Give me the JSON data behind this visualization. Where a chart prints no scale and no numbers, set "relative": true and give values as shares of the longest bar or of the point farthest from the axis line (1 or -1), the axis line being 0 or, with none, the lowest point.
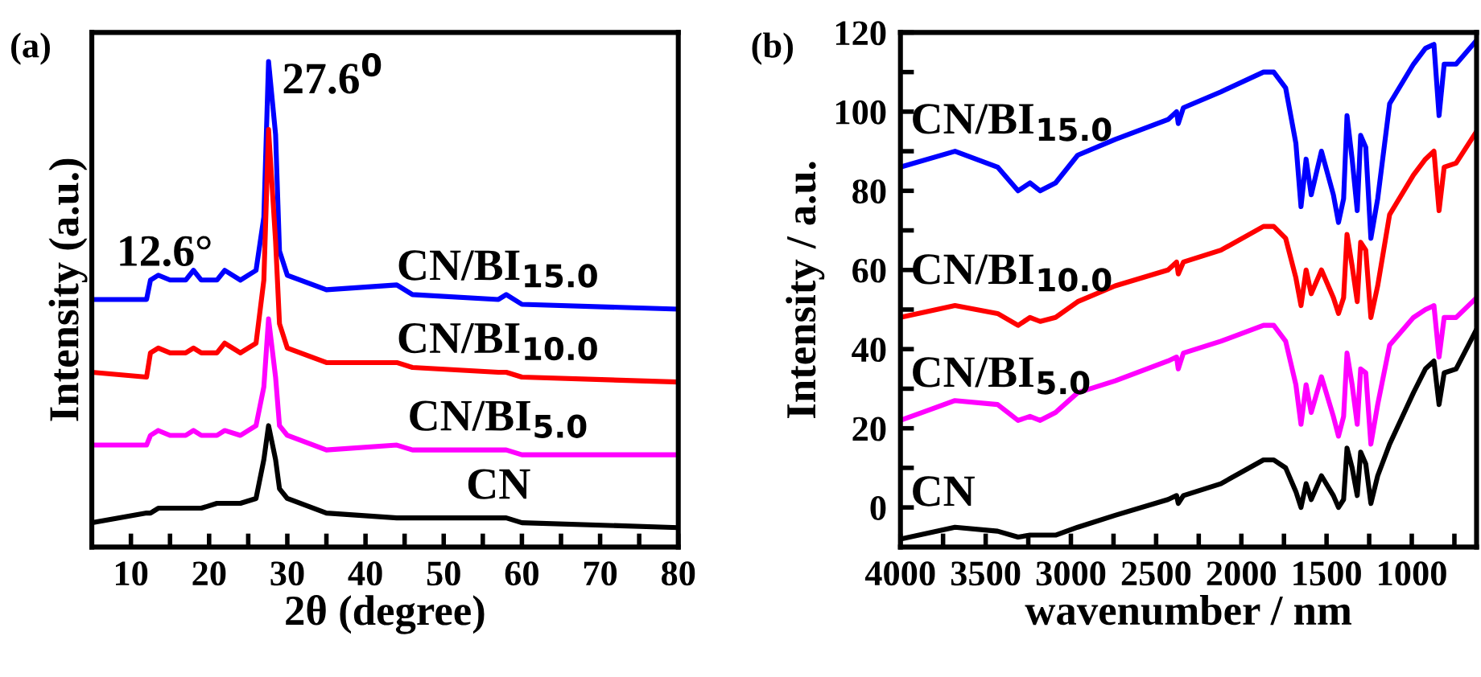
{
  "chart_data": [
    {
      "type": "line",
      "xlabel": "2θ (degree)",
      "ylabel": "Intensity (a.u.)",
      "relative": true,
      "xlim": [
        5,
        80
      ],
      "xticks": [
        10,
        {
          "value": 15,
          "label": null
        },
        20,
        {
          "value": 25,
          "label": null
        },
        30,
        {
          "value": 35,
          "label": null
        },
        40,
        {
          "value": 45,
          "label": null
        },
        50,
        {
          "value": 55,
          "label": null
        },
        60,
        {
          "value": 65,
          "label": null
        },
        70,
        {
          "value": 75,
          "label": null
        },
        80
      ],
      "x": [
        5,
        12,
        12.5,
        13.5,
        15,
        17,
        18,
        19,
        21,
        22,
        24,
        26,
        27,
        27.6,
        28.5,
        29,
        30,
        35,
        44,
        46,
        57,
        58,
        60,
        80
      ],
      "series": [
        {
          "name": "CN/BI$_{15.0}$",
          "color": "#0000ff",
          "values": [
            0.51,
            0.51,
            0.55,
            0.56,
            0.55,
            0.55,
            0.57,
            0.55,
            0.55,
            0.57,
            0.55,
            0.57,
            0.68,
            1,
            0.85,
            0.61,
            0.56,
            0.53,
            0.54,
            0.52,
            0.51,
            0.52,
            0.5,
            0.49
          ]
        },
        {
          "name": "CN/BI$_{10.0}$",
          "color": "#ff0000",
          "values": [
            0.36,
            0.35,
            0.4,
            0.41,
            0.4,
            0.4,
            0.41,
            0.4,
            0.4,
            0.42,
            0.4,
            0.42,
            0.55,
            0.86,
            0.63,
            0.46,
            0.41,
            0.38,
            0.38,
            0.37,
            0.36,
            0.36,
            0.35,
            0.34
          ]
        },
        {
          "name": "CN/BI$_{5.0}$",
          "color": "#ff00ff",
          "values": [
            0.21,
            0.21,
            0.23,
            0.24,
            0.23,
            0.23,
            0.24,
            0.23,
            0.23,
            0.24,
            0.23,
            0.25,
            0.33,
            0.47,
            0.35,
            0.25,
            0.23,
            0.2,
            0.21,
            0.2,
            0.2,
            0.2,
            0.19,
            0.19
          ]
        },
        {
          "name": "CN",
          "color": "#000000",
          "values": [
            0.05,
            0.07,
            0.07,
            0.08,
            0.08,
            0.08,
            0.08,
            0.08,
            0.09,
            0.09,
            0.09,
            0.1,
            0.18,
            0.25,
            0.18,
            0.12,
            0.1,
            0.07,
            0.06,
            0.06,
            0.06,
            0.06,
            0.05,
            0.04
          ]
        }
      ],
      "annotations": [
        "(a)",
        {
          "text": "12.6°",
          "x": 12.6,
          "y": 0.56
        },
        {
          "text": "27.6$^{0}$",
          "x": 27.6,
          "y": 1
        }
      ],
      "grid": false,
      "legend": false,
      "line_style": "solid",
      "marker": "none"
    },
    {
      "type": "line",
      "xlabel": "wavenumber / nm",
      "ylabel": "Intensity / a.u.",
      "xlim": [
        4000,
        620
      ],
      "ylim": [
        -10,
        120
      ],
      "xticks": [
        4000,
        {
          "value": 3750,
          "label": null
        },
        3500,
        {
          "value": 3250,
          "label": null
        },
        3000,
        {
          "value": 2750,
          "label": null
        },
        2500,
        {
          "value": 2250,
          "label": null
        },
        2000,
        {
          "value": 1750,
          "label": null
        },
        1500,
        {
          "value": 1250,
          "label": null
        },
        1000,
        {
          "value": 750,
          "label": null
        }
      ],
      "yticks": [
        0,
        {
          "value": 10,
          "label": null
        },
        20,
        {
          "value": 30,
          "label": null
        },
        40,
        {
          "value": 50,
          "label": null
        },
        60,
        {
          "value": 70,
          "label": null
        },
        80,
        {
          "value": 90,
          "label": null
        },
        100,
        {
          "value": 110,
          "label": null
        },
        120
      ],
      "x": [
        4000,
        3680,
        3430,
        3310,
        3240,
        3180,
        3090,
        2960,
        2740,
        2430,
        2380,
        2370,
        2340,
        2120,
        1870,
        1810,
        1740,
        1680,
        1650,
        1620,
        1590,
        1530,
        1460,
        1430,
        1400,
        1380,
        1350,
        1320,
        1300,
        1270,
        1240,
        1200,
        1130,
        990,
        920,
        870,
        840,
        810,
        740,
        620
      ],
      "series": [
        {
          "name": "CN/BI$_{15.0}$",
          "color": "#0000ff",
          "values": [
            86,
            90,
            86,
            80,
            82,
            80,
            82,
            89,
            93,
            98,
            100,
            97,
            101,
            105,
            110,
            110,
            106,
            92,
            76,
            88,
            79,
            90,
            79,
            72,
            78,
            99,
            88,
            75,
            94,
            91,
            68,
            78,
            102,
            112,
            116,
            117,
            99,
            112,
            112,
            118
          ]
        },
        {
          "name": "CN/BI$_{10.0}$",
          "color": "#ff0000",
          "values": [
            48,
            51,
            49,
            46,
            48,
            47,
            48,
            52,
            56,
            60,
            62,
            59,
            62,
            65,
            71,
            71,
            68,
            58,
            51,
            60,
            54,
            60,
            53,
            49,
            53,
            69,
            61,
            52,
            67,
            65,
            48,
            56,
            74,
            84,
            88,
            90,
            75,
            86,
            87,
            95
          ]
        },
        {
          "name": "CN/BI$_{5.0}$",
          "color": "#ff00ff",
          "values": [
            22,
            27,
            26,
            22,
            23,
            22,
            24,
            29,
            32,
            37,
            38,
            35,
            39,
            42,
            46,
            46,
            42,
            31,
            21,
            31,
            24,
            33,
            23,
            18,
            23,
            39,
            31,
            21,
            35,
            34,
            16,
            26,
            41,
            48,
            50,
            51,
            38,
            48,
            48,
            53
          ]
        },
        {
          "name": "CN",
          "color": "#000000",
          "values": [
            -8,
            -5,
            -6,
            -7.5,
            -7,
            -7,
            -7,
            -5,
            -2,
            2,
            3,
            1,
            3,
            6,
            12,
            12,
            10,
            4,
            0,
            6,
            2,
            8,
            3,
            0,
            2,
            15,
            10,
            3,
            14,
            11,
            1,
            8,
            16,
            29,
            35,
            37,
            26,
            34,
            35,
            45
          ]
        }
      ],
      "annotations": [
        "(b)"
      ],
      "grid": false,
      "legend": false,
      "line_style": "solid",
      "marker": "none"
    }
  ]
}
